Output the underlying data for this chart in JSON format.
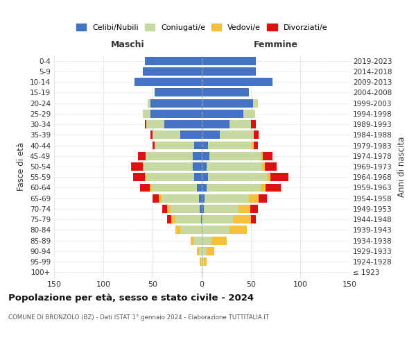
{
  "age_groups": [
    "100+",
    "95-99",
    "90-94",
    "85-89",
    "80-84",
    "75-79",
    "70-74",
    "65-69",
    "60-64",
    "55-59",
    "50-54",
    "45-49",
    "40-44",
    "35-39",
    "30-34",
    "25-29",
    "20-24",
    "15-19",
    "10-14",
    "5-9",
    "0-4"
  ],
  "birth_years": [
    "≤ 1923",
    "1924-1928",
    "1929-1933",
    "1934-1938",
    "1939-1943",
    "1944-1948",
    "1949-1953",
    "1954-1958",
    "1959-1963",
    "1964-1968",
    "1969-1973",
    "1974-1978",
    "1979-1983",
    "1984-1988",
    "1989-1993",
    "1994-1998",
    "1999-2003",
    "2004-2008",
    "2009-2013",
    "2014-2018",
    "2019-2023"
  ],
  "male_celibi": [
    0,
    0,
    0,
    0,
    0,
    1,
    2,
    3,
    5,
    8,
    9,
    9,
    8,
    22,
    38,
    52,
    52,
    48,
    68,
    60,
    58
  ],
  "male_coniugati": [
    0,
    1,
    3,
    8,
    22,
    26,
    30,
    38,
    46,
    48,
    50,
    48,
    40,
    28,
    18,
    8,
    3,
    0,
    0,
    0,
    0
  ],
  "male_vedovi": [
    0,
    1,
    2,
    3,
    5,
    4,
    3,
    3,
    2,
    2,
    1,
    0,
    0,
    0,
    0,
    0,
    0,
    0,
    0,
    0,
    0
  ],
  "male_divorziati": [
    0,
    0,
    0,
    0,
    0,
    4,
    5,
    6,
    10,
    12,
    12,
    8,
    2,
    2,
    2,
    0,
    0,
    0,
    0,
    0,
    0
  ],
  "fem_nubili": [
    0,
    0,
    0,
    0,
    0,
    0,
    2,
    3,
    5,
    6,
    5,
    8,
    6,
    18,
    28,
    42,
    52,
    48,
    72,
    55,
    55
  ],
  "fem_coniugate": [
    0,
    2,
    5,
    10,
    28,
    32,
    35,
    45,
    55,
    60,
    56,
    52,
    45,
    35,
    22,
    12,
    5,
    0,
    0,
    0,
    0
  ],
  "fem_vedove": [
    1,
    3,
    8,
    15,
    18,
    18,
    12,
    10,
    5,
    4,
    3,
    2,
    2,
    0,
    0,
    0,
    0,
    0,
    0,
    0,
    0
  ],
  "fem_divorziate": [
    0,
    0,
    0,
    0,
    0,
    5,
    8,
    8,
    15,
    18,
    12,
    10,
    4,
    5,
    5,
    0,
    0,
    0,
    0,
    0,
    0
  ],
  "color_celibi": "#4472c4",
  "color_coniugati": "#c5d9a0",
  "color_vedovi": "#f5c040",
  "color_divorziati": "#dd1111",
  "xlim": 150,
  "title": "Popolazione per età, sesso e stato civile - 2024",
  "subtitle": "COMUNE DI BRONZOLO (BZ) - Dati ISTAT 1° gennaio 2024 - Elaborazione TUTTITALIA.IT",
  "ylabel": "Fasce di età",
  "ylabel_right": "Anni di nascita",
  "label_maschi": "Maschi",
  "label_femmine": "Femmine",
  "legend_labels": [
    "Celibi/Nubili",
    "Coniugati/e",
    "Vedovi/e",
    "Divorziati/e"
  ],
  "bg_color": "#ffffff",
  "grid_color": "#cccccc"
}
